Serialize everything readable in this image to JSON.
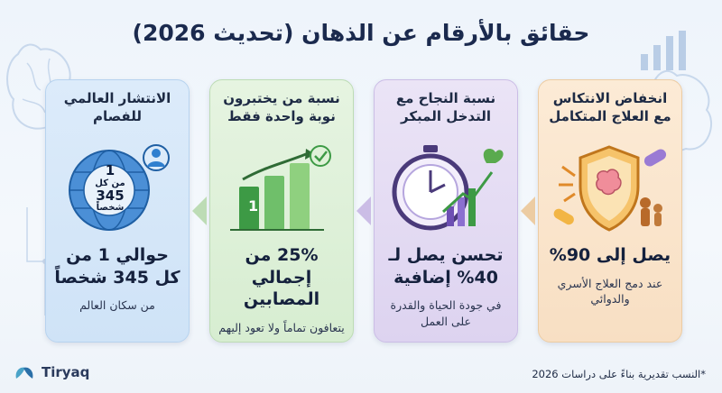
{
  "title": "حقائق بالأرقام عن الذهان (تحديث 2026)",
  "cards": [
    {
      "head": "الانتشار العالمي للفصام",
      "badge_line1": "1",
      "badge_line2": "من كل",
      "badge_line3": "345",
      "badge_line4": "شخصاً",
      "stat": "حوالي 1 من كل 345 شخصاً",
      "sub": "من سكان العالم"
    },
    {
      "head": "نسبة من يختبرون نوبة واحدة فقط",
      "bar_label": "1",
      "stat": "25% من إجمالي المصابين",
      "sub": "يتعافون تماماً ولا تعود إليهم"
    },
    {
      "head": "نسبة النجاح مع التدخل المبكر",
      "stat": "تحسن يصل لـ 40% إضافية",
      "sub": "في جودة الحياة والقدرة على العمل"
    },
    {
      "head": "انخفاض الانتكاس مع العلاج المتكامل",
      "stat": "يصل إلى 90%",
      "sub": "عند دمج العلاج الأسري والدوائي"
    }
  ],
  "brand": "Tiryaq",
  "footnote": "*النسب تقديرية بناءً على دراسات 2026",
  "colors": {
    "blue": "#2f7fcf",
    "green": "#3d9a45",
    "purple": "#6d4fb3",
    "orange": "#e08a2a"
  }
}
